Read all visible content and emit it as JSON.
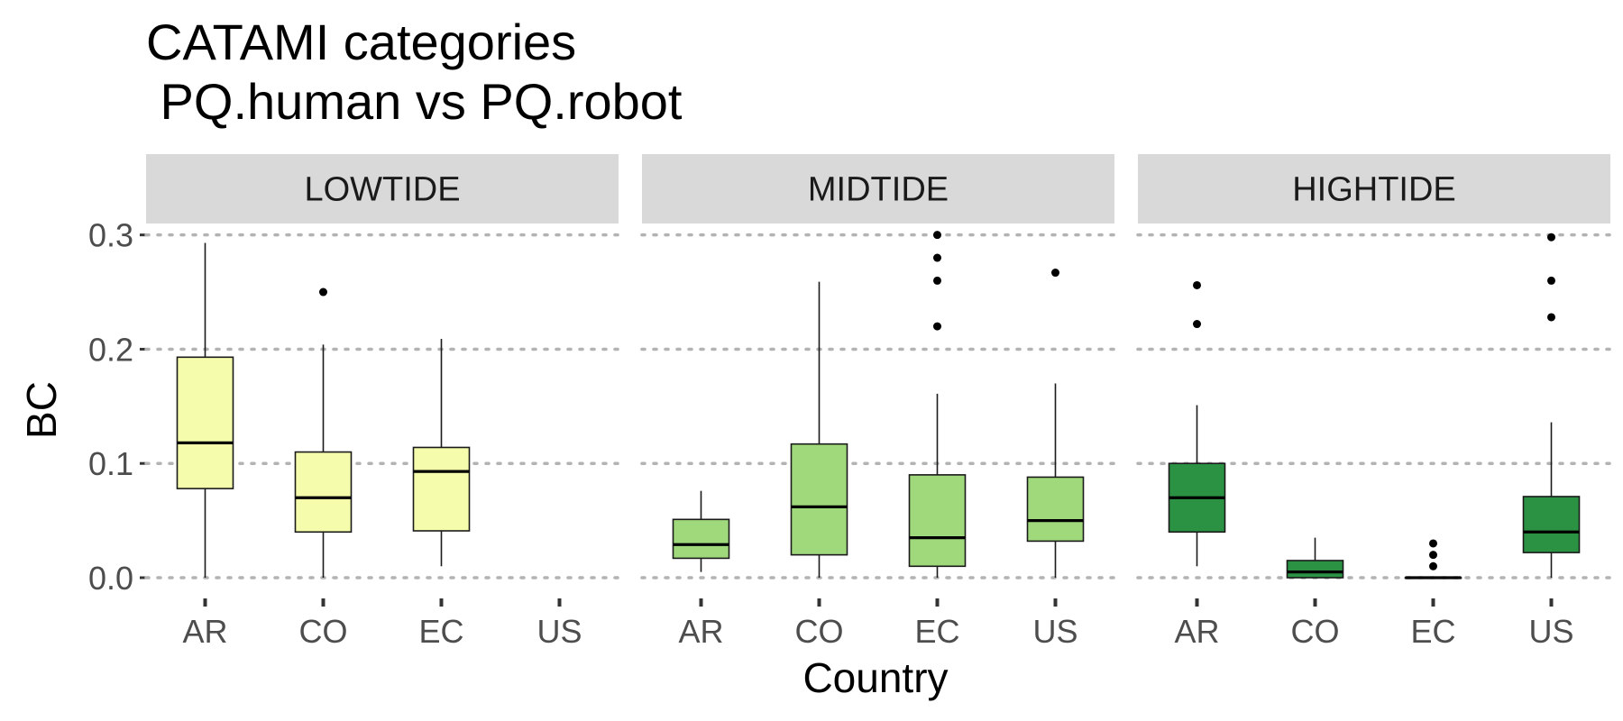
{
  "chart_data": {
    "type": "boxplot",
    "title_lines": [
      "CATAMI categories",
      " PQ.human vs PQ.robot"
    ],
    "xlabel": "Country",
    "ylabel": "BC",
    "ylim": [
      -0.015,
      0.31
    ],
    "yticks": [
      "0.0",
      "0.1",
      "0.2",
      "0.3"
    ],
    "ytick_values": [
      0.0,
      0.1,
      0.2,
      0.3
    ],
    "grid": "horizontal dotted",
    "categories": [
      "AR",
      "CO",
      "EC",
      "US"
    ],
    "panels": [
      {
        "label": "LOWTIDE",
        "fill": "#f5fcab",
        "boxes": [
          {
            "country": "AR",
            "min": 0.0,
            "q1": 0.078,
            "median": 0.118,
            "q3": 0.193,
            "max": 0.293,
            "outliers": []
          },
          {
            "country": "CO",
            "min": 0.0,
            "q1": 0.04,
            "median": 0.07,
            "q3": 0.11,
            "max": 0.204,
            "outliers": [
              0.25
            ]
          },
          {
            "country": "EC",
            "min": 0.01,
            "q1": 0.041,
            "median": 0.093,
            "q3": 0.114,
            "max": 0.209,
            "outliers": []
          }
        ]
      },
      {
        "label": "MIDTIDE",
        "fill": "#a0d97b",
        "boxes": [
          {
            "country": "AR",
            "min": 0.005,
            "q1": 0.017,
            "median": 0.029,
            "q3": 0.051,
            "max": 0.076,
            "outliers": []
          },
          {
            "country": "CO",
            "min": 0.0,
            "q1": 0.02,
            "median": 0.062,
            "q3": 0.117,
            "max": 0.259,
            "outliers": []
          },
          {
            "country": "EC",
            "min": 0.0,
            "q1": 0.01,
            "median": 0.035,
            "q3": 0.09,
            "max": 0.161,
            "outliers": [
              0.22,
              0.26,
              0.28,
              0.3
            ]
          },
          {
            "country": "US",
            "min": 0.0,
            "q1": 0.032,
            "median": 0.05,
            "q3": 0.088,
            "max": 0.17,
            "outliers": [
              0.267
            ]
          }
        ]
      },
      {
        "label": "HIGHTIDE",
        "fill": "#2b9244",
        "boxes": [
          {
            "country": "AR",
            "min": 0.01,
            "q1": 0.04,
            "median": 0.07,
            "q3": 0.1,
            "max": 0.151,
            "outliers": [
              0.222,
              0.256
            ]
          },
          {
            "country": "CO",
            "min": 0.0,
            "q1": 0.0,
            "median": 0.005,
            "q3": 0.015,
            "max": 0.035,
            "outliers": []
          },
          {
            "country": "EC",
            "min": 0.0,
            "q1": 0.0,
            "median": 0.0,
            "q3": 0.0,
            "max": 0.0,
            "outliers": [
              0.01,
              0.02,
              0.03
            ]
          },
          {
            "country": "US",
            "min": 0.0,
            "q1": 0.022,
            "median": 0.04,
            "q3": 0.071,
            "max": 0.136,
            "outliers": [
              0.228,
              0.26,
              0.298
            ]
          }
        ]
      }
    ]
  }
}
